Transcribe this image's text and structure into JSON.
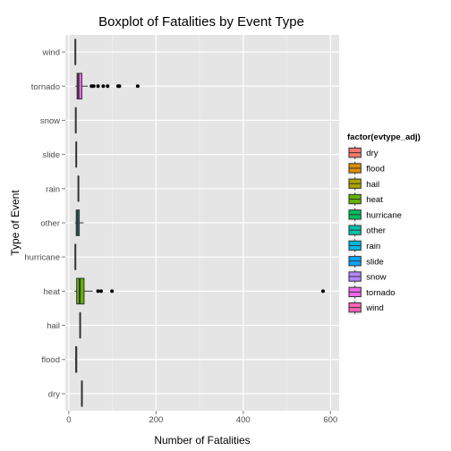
{
  "chart_data": {
    "type": "boxplot",
    "orientation": "horizontal",
    "title": "Boxplot of Fatalities by Event Type",
    "xlabel": "Number of Fatalities",
    "ylabel": "Type of Event",
    "xlim": [
      -8,
      620
    ],
    "xticks": [
      0,
      200,
      400,
      600
    ],
    "grid": true,
    "legend_placement": "right",
    "legend_title": "factor(evtype_adj)",
    "categories": [
      "dry",
      "flood",
      "hail",
      "heat",
      "hurricane",
      "other",
      "rain",
      "slide",
      "snow",
      "tornado",
      "wind"
    ],
    "series": [
      {
        "name": "dry",
        "color": "#F8766D",
        "min": 30,
        "q1": 30,
        "median": 30,
        "q3": 30,
        "max": 30,
        "outliers": []
      },
      {
        "name": "flood",
        "color": "#DB8E00",
        "min": 14,
        "q1": 16,
        "median": 17,
        "q3": 18,
        "max": 19,
        "outliers": []
      },
      {
        "name": "hail",
        "color": "#AEA200",
        "min": 26,
        "q1": 26,
        "median": 26,
        "q3": 26,
        "max": 26,
        "outliers": []
      },
      {
        "name": "heat",
        "color": "#64B200",
        "min": 13,
        "q1": 18,
        "median": 25,
        "q3": 35,
        "max": 55,
        "outliers": [
          67,
          74,
          99,
          583
        ]
      },
      {
        "name": "hurricane",
        "color": "#00BD5C",
        "min": 15,
        "q1": 15,
        "median": 15,
        "q3": 15,
        "max": 15,
        "outliers": []
      },
      {
        "name": "other",
        "color": "#00C1A7",
        "min": 14,
        "q1": 17,
        "median": 20,
        "q3": 24,
        "max": 34,
        "outliers": []
      },
      {
        "name": "rain",
        "color": "#00BADE",
        "min": 22,
        "q1": 22,
        "median": 22,
        "q3": 22,
        "max": 22,
        "outliers": []
      },
      {
        "name": "slide",
        "color": "#00A6FF",
        "min": 17,
        "q1": 17,
        "median": 17,
        "q3": 17,
        "max": 17,
        "outliers": []
      },
      {
        "name": "snow",
        "color": "#B385FF",
        "min": 16,
        "q1": 16,
        "median": 16,
        "q3": 16,
        "max": 16,
        "outliers": []
      },
      {
        "name": "tornado",
        "color": "#EF67EB",
        "min": 15,
        "q1": 19,
        "median": 22,
        "q3": 30,
        "max": 44,
        "outliers": [
          52,
          57,
          67,
          79,
          89,
          113,
          116,
          158
        ]
      },
      {
        "name": "wind",
        "color": "#FF63B6",
        "min": 15,
        "q1": 15,
        "median": 15,
        "q3": 15,
        "max": 15,
        "outliers": []
      }
    ]
  }
}
